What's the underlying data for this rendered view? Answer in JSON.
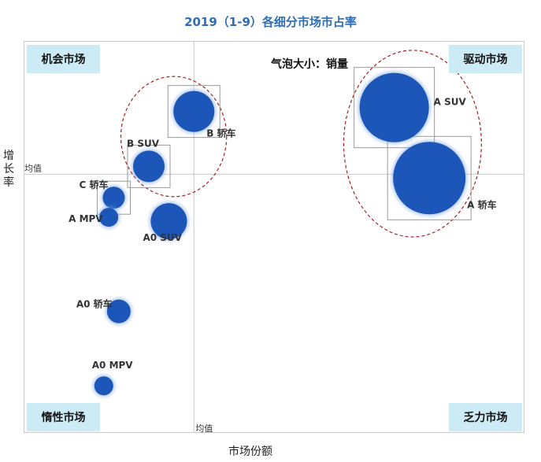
{
  "chart_data": {
    "type": "scatter",
    "subtype": "bubble",
    "title": "2019（1-9）各细分市场市占率",
    "xlabel": "市场份额",
    "ylabel": "增长率",
    "size_note": "气泡大小：销量",
    "average_label_x": "均值",
    "average_label_y": "均值",
    "quadrants": {
      "top_left": "机会市场",
      "top_right": "驱动市场",
      "bottom_left": "惰性市场",
      "bottom_right": "乏力市场"
    },
    "xlim": [
      0,
      100
    ],
    "ylim": [
      0,
      100
    ],
    "average": {
      "x": 34,
      "y": 66
    },
    "points": [
      {
        "name": "A SUV",
        "x": 74,
        "y": 83,
        "size": 44
      },
      {
        "name": "A 轿车",
        "x": 81,
        "y": 65,
        "size": 46
      },
      {
        "name": "B 轿车",
        "x": 34,
        "y": 82,
        "size": 26
      },
      {
        "name": "B SUV",
        "x": 25,
        "y": 68,
        "size": 20
      },
      {
        "name": "C 轿车",
        "x": 18,
        "y": 60,
        "size": 14
      },
      {
        "name": "A MPV",
        "x": 17,
        "y": 55,
        "size": 12
      },
      {
        "name": "A0 SUV",
        "x": 29,
        "y": 54,
        "size": 23
      },
      {
        "name": "A0 轿车",
        "x": 19,
        "y": 31,
        "size": 15
      },
      {
        "name": "A0 MPV",
        "x": 16,
        "y": 12,
        "size": 12
      }
    ],
    "highlight_groups": [
      [
        "B 轿车",
        "B SUV"
      ],
      [
        "A SUV",
        "A 轿车"
      ]
    ],
    "boxed_points": [
      "A SUV",
      "A 轿车",
      "B 轿车",
      "B SUV",
      "C 轿车"
    ],
    "grid": false,
    "colors": {
      "bubble": "#1B56B8",
      "title": "#2F6EB5",
      "quadrant_bg": "#CDEBF4",
      "circle_outline": "#A3201E"
    }
  }
}
